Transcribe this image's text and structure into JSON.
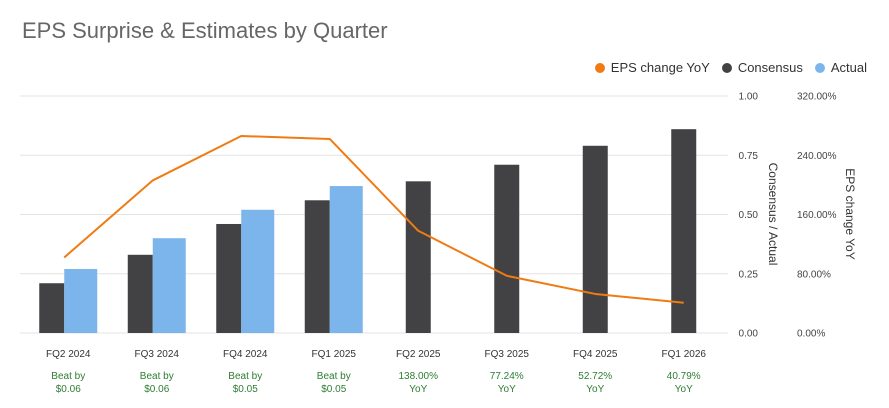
{
  "title": "EPS Surprise & Estimates by Quarter",
  "colors": {
    "consensus": "#424245",
    "actual": "#7cb5ec",
    "yoy": "#f07b12",
    "note": "#2e7d32"
  },
  "chart_data": {
    "type": "bar",
    "title": "EPS Surprise & Estimates by Quarter",
    "categories": [
      "FQ2 2024",
      "FQ3 2024",
      "FQ4 2024",
      "FQ1 2025",
      "FQ2 2025",
      "FQ3 2025",
      "FQ4 2025",
      "FQ1 2026"
    ],
    "series": [
      {
        "name": "Consensus",
        "type": "bar",
        "axis": "left",
        "values": [
          0.21,
          0.33,
          0.46,
          0.56,
          0.64,
          0.71,
          0.79,
          0.86
        ]
      },
      {
        "name": "Actual",
        "type": "bar",
        "axis": "left",
        "values": [
          0.27,
          0.4,
          0.52,
          0.62,
          null,
          null,
          null,
          null
        ]
      },
      {
        "name": "EPS change YoY",
        "type": "line",
        "axis": "right",
        "values": [
          102,
          206,
          266,
          262,
          138.0,
          77.24,
          52.72,
          40.79
        ]
      }
    ],
    "notes": [
      [
        "Beat by",
        "$0.06"
      ],
      [
        "Beat by",
        "$0.06"
      ],
      [
        "Beat by",
        "$0.05"
      ],
      [
        "Beat by",
        "$0.05"
      ],
      [
        "138.00%",
        "YoY"
      ],
      [
        "77.24%",
        "YoY"
      ],
      [
        "52.72%",
        "YoY"
      ],
      [
        "40.79%",
        "YoY"
      ]
    ],
    "y_left": {
      "label": "Consensus / Actual",
      "range": [
        0,
        1
      ],
      "ticks": [
        "0.00",
        "0.25",
        "0.50",
        "0.75",
        "1.00"
      ]
    },
    "y_right": {
      "label": "EPS change YoY",
      "range": [
        0,
        320
      ],
      "ticks": [
        "0.00%",
        "80.00%",
        "160.00%",
        "240.00%",
        "320.00%"
      ]
    },
    "legend": {
      "position": "top-right",
      "entries": [
        "EPS change YoY",
        "Consensus",
        "Actual"
      ]
    },
    "grid": true
  }
}
